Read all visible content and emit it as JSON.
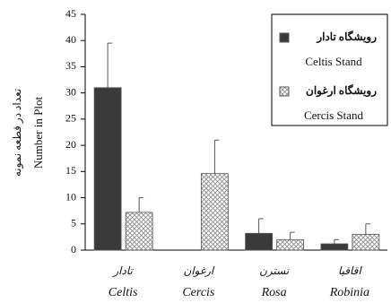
{
  "chart_data": {
    "type": "bar",
    "y_label_fa": "تعداد در قطعه نمونه",
    "y_label": "Number in Plot",
    "categories_fa": [
      "تادار",
      "ارغوان",
      "نسترن",
      "اقاقیا"
    ],
    "categories": [
      "Celtis",
      "Cercis",
      "Rosa",
      "Robinia"
    ],
    "series": [
      {
        "name_fa": "رویشگاه تادار",
        "name": "Celtis Stand",
        "color": "#3a3a3a",
        "hatch": false,
        "values": [
          31,
          null,
          3.2,
          1.2
        ],
        "errors": [
          8.5,
          null,
          2.8,
          0.8
        ]
      },
      {
        "name_fa": "رویشگاه ارغوان",
        "name": "Cercis Stand",
        "color": "#888888",
        "hatch": true,
        "values": [
          7.2,
          14.6,
          2,
          3
        ],
        "errors": [
          2.8,
          6.4,
          1.4,
          2
        ]
      }
    ],
    "ylim": [
      0,
      45
    ],
    "yticks": [
      0,
      5,
      10,
      15,
      20,
      25,
      30,
      35,
      40,
      45
    ],
    "legend": "upper right"
  }
}
